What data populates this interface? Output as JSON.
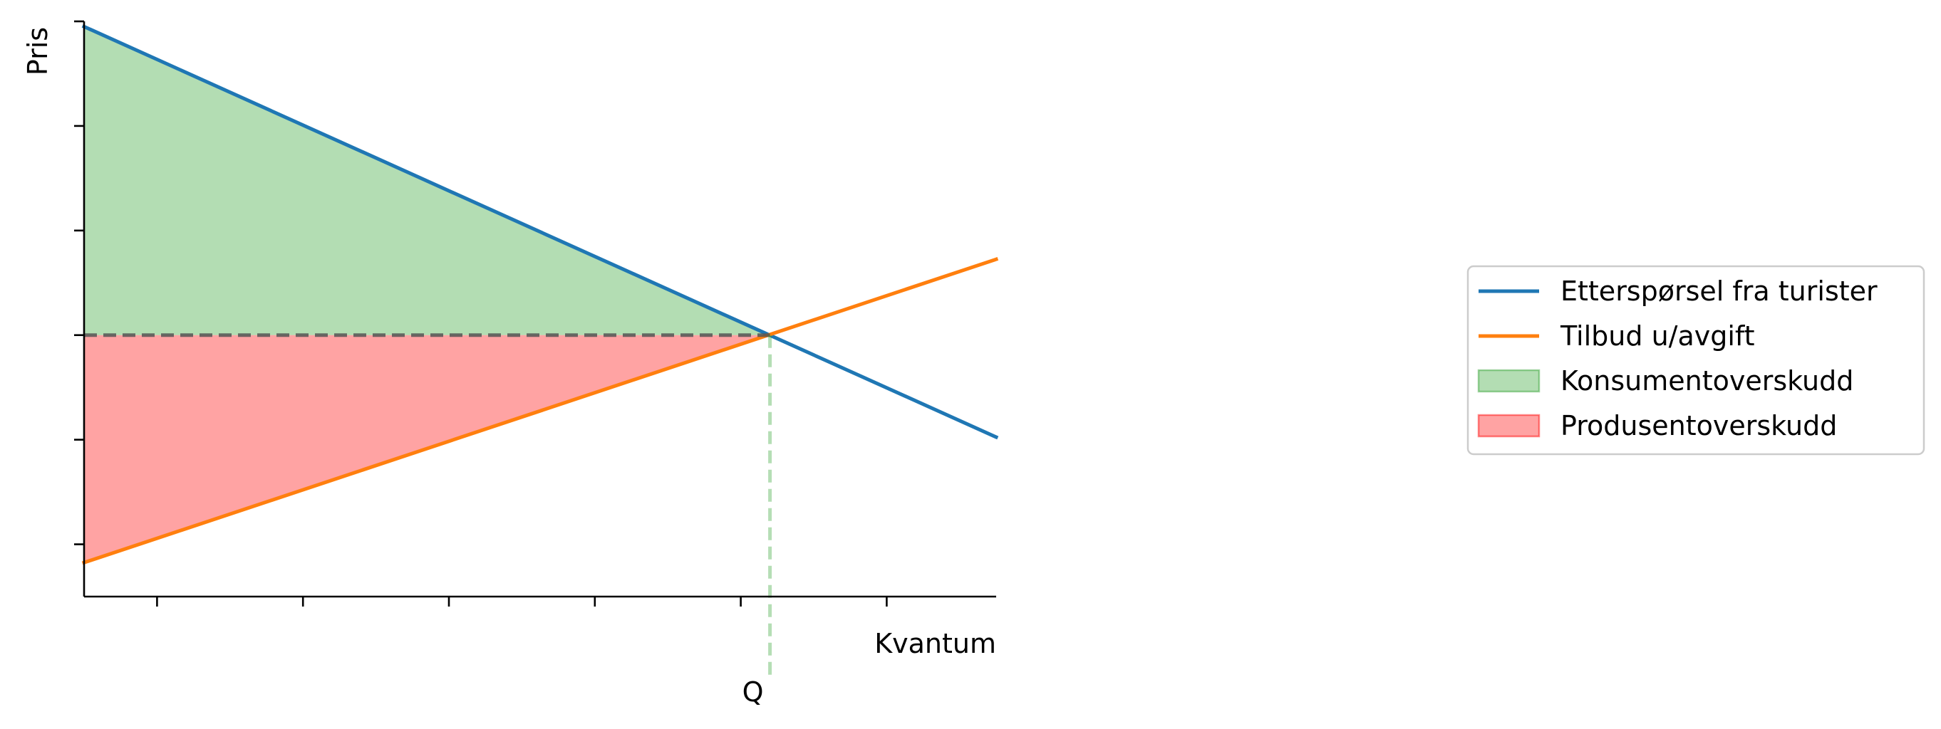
{
  "chart_data": {
    "type": "line",
    "xlabel": "Kvantum",
    "ylabel": "Pris",
    "xlim": [
      0,
      125
    ],
    "ylim": [
      0,
      110
    ],
    "x_ticks": [
      10,
      30,
      50,
      70,
      90,
      110
    ],
    "y_ticks": [
      10,
      30,
      50,
      70,
      90,
      110
    ],
    "grid": false,
    "legend_position": "right",
    "equilibrium": {
      "x": 94,
      "y": 50,
      "label": "Q"
    },
    "series": [
      {
        "name": "Etterspørsel fra turister",
        "kind": "line",
        "color": "#1f77b4",
        "x": [
          0,
          125
        ],
        "y": [
          109,
          30.5
        ]
      },
      {
        "name": "Tilbud u/avgift",
        "kind": "line",
        "color": "#ff7f0e",
        "x": [
          0,
          125
        ],
        "y": [
          6.5,
          64.5
        ]
      },
      {
        "name": "Konsumentoverskudd",
        "kind": "area",
        "color": "#2ca02c",
        "points": [
          [
            0,
            109
          ],
          [
            94,
            50
          ],
          [
            0,
            50
          ]
        ]
      },
      {
        "name": "Produsentoverskudd",
        "kind": "area",
        "color": "#ff0000",
        "points": [
          [
            0,
            50
          ],
          [
            94,
            50
          ],
          [
            0,
            6.5
          ]
        ]
      }
    ]
  }
}
